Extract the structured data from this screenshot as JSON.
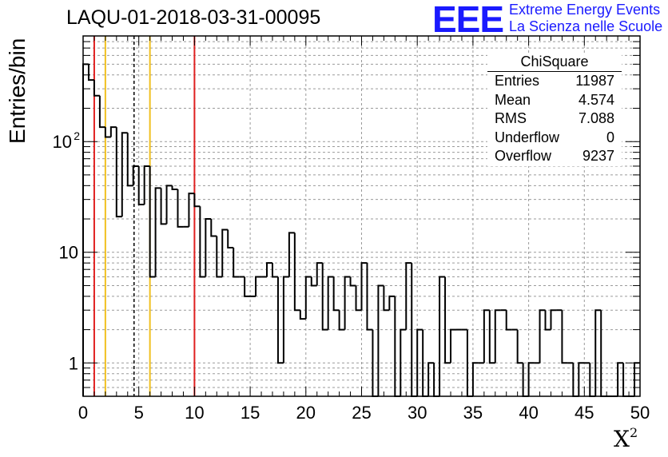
{
  "title": "LAQU-01-2018-03-31-00095",
  "logo": {
    "mark": "EEE",
    "line1": "Extreme Energy Events",
    "line2": "La Scienza nelle Scuole"
  },
  "stats_box": {
    "name": "ChiSquare",
    "rows": [
      {
        "label": "Entries",
        "value": "11987"
      },
      {
        "label": "Mean",
        "value": "4.574"
      },
      {
        "label": "RMS",
        "value": "7.088"
      },
      {
        "label": "Underflow",
        "value": "0"
      },
      {
        "label": "Overflow",
        "value": "9237"
      }
    ]
  },
  "chart_data": {
    "type": "histogram",
    "title": "LAQU-01-2018-03-31-00095",
    "xlabel": "X",
    "xlabel_superscript": "2",
    "ylabel": "Entries/bin",
    "xlim": [
      0,
      50
    ],
    "ylim": [
      0.5,
      900
    ],
    "yscale": "log",
    "bin_width": 0.5,
    "x_ticks": [
      "0",
      "5",
      "10",
      "15",
      "20",
      "25",
      "30",
      "35",
      "40",
      "45",
      "50"
    ],
    "y_ticks": [
      {
        "value": 1,
        "label": "1"
      },
      {
        "value": 10,
        "label": "10"
      },
      {
        "value": 100,
        "label": "10",
        "sup": "2"
      }
    ],
    "grid": true,
    "counts": [
      500,
      360,
      260,
      135,
      110,
      135,
      21,
      120,
      40,
      60,
      27,
      60,
      6,
      38,
      18,
      40,
      37,
      17,
      17,
      34,
      26,
      6,
      20,
      14,
      6,
      16,
      11,
      6,
      6,
      4,
      4,
      6,
      6,
      8,
      6,
      1,
      6,
      15,
      3,
      2.5,
      6,
      5,
      8,
      2,
      6,
      3,
      2,
      6,
      5,
      3,
      8,
      2,
      0,
      5,
      3,
      4,
      0,
      2,
      8,
      0,
      2,
      0,
      1,
      0,
      6,
      1,
      2,
      2,
      2,
      0,
      1,
      1,
      3,
      1,
      3,
      3,
      2,
      2,
      1,
      0,
      1,
      1,
      3,
      2,
      3,
      3,
      1,
      1,
      0,
      1,
      1,
      0,
      3,
      0,
      0,
      0,
      1,
      0,
      0,
      1
    ],
    "vertical_lines": [
      {
        "x": 1,
        "color": "#e02020",
        "style": "solid"
      },
      {
        "x": 2,
        "color": "#f0c020",
        "style": "solid"
      },
      {
        "x": 4.574,
        "color": "#000000",
        "style": "dashed"
      },
      {
        "x": 6,
        "color": "#f0c020",
        "style": "solid"
      },
      {
        "x": 10,
        "color": "#e02020",
        "style": "solid"
      }
    ]
  }
}
